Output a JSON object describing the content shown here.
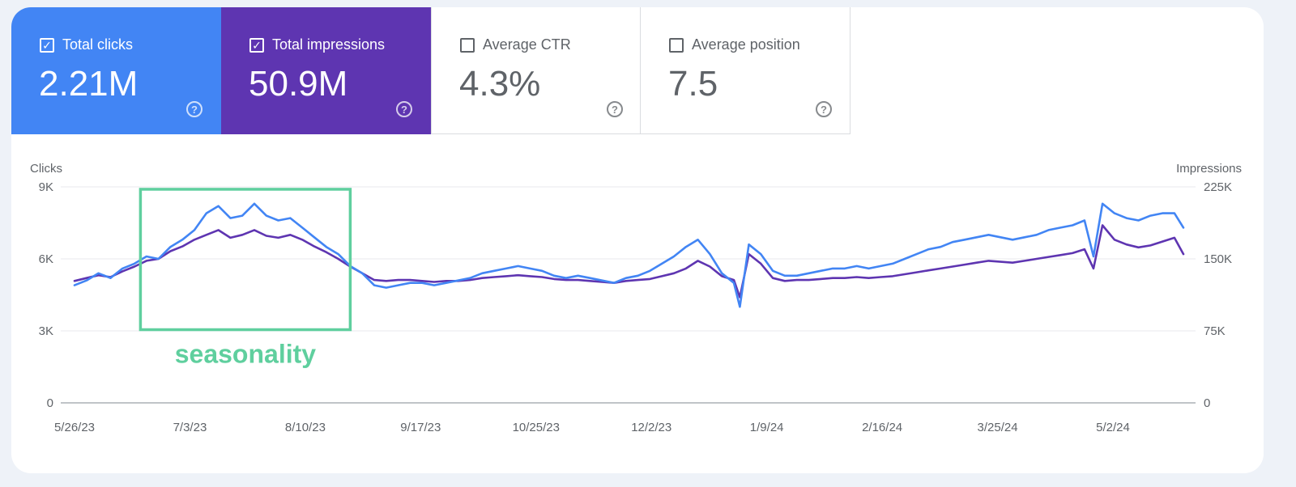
{
  "metrics": [
    {
      "label": "Total clicks",
      "value": "2.21M",
      "checked": true,
      "color": "#4285f4",
      "icon": "help-circle-icon"
    },
    {
      "label": "Total impressions",
      "value": "50.9M",
      "checked": true,
      "color": "#5e35b1",
      "icon": "help-circle-icon"
    },
    {
      "label": "Average CTR",
      "value": "4.3%",
      "checked": false,
      "icon": "help-circle-icon"
    },
    {
      "label": "Average position",
      "value": "7.5",
      "checked": false,
      "icon": "help-circle-icon"
    }
  ],
  "chart_data": {
    "type": "line",
    "y_left_label": "Clicks",
    "y_right_label": "Impressions",
    "y_left_range": [
      0,
      9000
    ],
    "y_right_range": [
      0,
      225000
    ],
    "y_left_ticks": [
      "0",
      "3K",
      "6K",
      "9K"
    ],
    "y_right_ticks": [
      "0",
      "75K",
      "150K",
      "225K"
    ],
    "x_ticks": [
      "5/26/23",
      "7/3/23",
      "8/10/23",
      "9/17/23",
      "10/25/23",
      "12/2/23",
      "1/9/24",
      "2/16/24",
      "3/25/24",
      "5/2/24"
    ],
    "x_range": [
      "2023-05-26",
      "2024-05-30"
    ],
    "grid": true,
    "annotation": {
      "text": "seasonality",
      "x_start": "2023-06-17",
      "x_end": "2023-08-26",
      "y_top": 8900,
      "y_bottom": 3050,
      "color": "#5fcf9e"
    },
    "series": [
      {
        "name": "Clicks",
        "axis": "left",
        "color": "#4285f4",
        "points": [
          [
            "2023-05-26",
            4900
          ],
          [
            "2023-05-30",
            5100
          ],
          [
            "2023-06-03",
            5400
          ],
          [
            "2023-06-07",
            5200
          ],
          [
            "2023-06-11",
            5600
          ],
          [
            "2023-06-15",
            5800
          ],
          [
            "2023-06-19",
            6100
          ],
          [
            "2023-06-23",
            6000
          ],
          [
            "2023-06-27",
            6500
          ],
          [
            "2023-07-01",
            6800
          ],
          [
            "2023-07-05",
            7200
          ],
          [
            "2023-07-09",
            7900
          ],
          [
            "2023-07-13",
            8200
          ],
          [
            "2023-07-17",
            7700
          ],
          [
            "2023-07-21",
            7800
          ],
          [
            "2023-07-25",
            8300
          ],
          [
            "2023-07-29",
            7800
          ],
          [
            "2023-08-02",
            7600
          ],
          [
            "2023-08-06",
            7700
          ],
          [
            "2023-08-10",
            7300
          ],
          [
            "2023-08-14",
            6900
          ],
          [
            "2023-08-18",
            6500
          ],
          [
            "2023-08-22",
            6200
          ],
          [
            "2023-08-26",
            5700
          ],
          [
            "2023-08-30",
            5400
          ],
          [
            "2023-09-03",
            4900
          ],
          [
            "2023-09-07",
            4800
          ],
          [
            "2023-09-11",
            4900
          ],
          [
            "2023-09-15",
            5000
          ],
          [
            "2023-09-19",
            5000
          ],
          [
            "2023-09-23",
            4900
          ],
          [
            "2023-09-27",
            5000
          ],
          [
            "2023-10-01",
            5100
          ],
          [
            "2023-10-05",
            5200
          ],
          [
            "2023-10-09",
            5400
          ],
          [
            "2023-10-13",
            5500
          ],
          [
            "2023-10-17",
            5600
          ],
          [
            "2023-10-21",
            5700
          ],
          [
            "2023-10-25",
            5600
          ],
          [
            "2023-10-29",
            5500
          ],
          [
            "2023-11-02",
            5300
          ],
          [
            "2023-11-06",
            5200
          ],
          [
            "2023-11-10",
            5300
          ],
          [
            "2023-11-14",
            5200
          ],
          [
            "2023-11-18",
            5100
          ],
          [
            "2023-11-22",
            5000
          ],
          [
            "2023-11-26",
            5200
          ],
          [
            "2023-11-30",
            5300
          ],
          [
            "2023-12-04",
            5500
          ],
          [
            "2023-12-08",
            5800
          ],
          [
            "2023-12-12",
            6100
          ],
          [
            "2023-12-16",
            6500
          ],
          [
            "2023-12-20",
            6800
          ],
          [
            "2023-12-24",
            6200
          ],
          [
            "2023-12-28",
            5400
          ],
          [
            "2024-01-01",
            5000
          ],
          [
            "2024-01-03",
            4000
          ],
          [
            "2024-01-06",
            6600
          ],
          [
            "2024-01-10",
            6200
          ],
          [
            "2024-01-14",
            5500
          ],
          [
            "2024-01-18",
            5300
          ],
          [
            "2024-01-22",
            5300
          ],
          [
            "2024-01-26",
            5400
          ],
          [
            "2024-01-30",
            5500
          ],
          [
            "2024-02-03",
            5600
          ],
          [
            "2024-02-07",
            5600
          ],
          [
            "2024-02-11",
            5700
          ],
          [
            "2024-02-15",
            5600
          ],
          [
            "2024-02-19",
            5700
          ],
          [
            "2024-02-23",
            5800
          ],
          [
            "2024-02-27",
            6000
          ],
          [
            "2024-03-02",
            6200
          ],
          [
            "2024-03-06",
            6400
          ],
          [
            "2024-03-10",
            6500
          ],
          [
            "2024-03-14",
            6700
          ],
          [
            "2024-03-18",
            6800
          ],
          [
            "2024-03-22",
            6900
          ],
          [
            "2024-03-26",
            7000
          ],
          [
            "2024-03-30",
            6900
          ],
          [
            "2024-04-03",
            6800
          ],
          [
            "2024-04-07",
            6900
          ],
          [
            "2024-04-11",
            7000
          ],
          [
            "2024-04-15",
            7200
          ],
          [
            "2024-04-19",
            7300
          ],
          [
            "2024-04-23",
            7400
          ],
          [
            "2024-04-27",
            7600
          ],
          [
            "2024-04-30",
            6100
          ],
          [
            "2024-05-03",
            8300
          ],
          [
            "2024-05-07",
            7900
          ],
          [
            "2024-05-11",
            7700
          ],
          [
            "2024-05-15",
            7600
          ],
          [
            "2024-05-19",
            7800
          ],
          [
            "2024-05-23",
            7900
          ],
          [
            "2024-05-27",
            7900
          ],
          [
            "2024-05-30",
            7300
          ]
        ]
      },
      {
        "name": "Impressions",
        "axis": "right",
        "color": "#5e35b1",
        "points": [
          [
            "2023-05-26",
            127000
          ],
          [
            "2023-05-30",
            130000
          ],
          [
            "2023-06-03",
            133000
          ],
          [
            "2023-06-07",
            131000
          ],
          [
            "2023-06-11",
            137000
          ],
          [
            "2023-06-15",
            142000
          ],
          [
            "2023-06-19",
            148000
          ],
          [
            "2023-06-23",
            150000
          ],
          [
            "2023-06-27",
            158000
          ],
          [
            "2023-07-01",
            163000
          ],
          [
            "2023-07-05",
            170000
          ],
          [
            "2023-07-09",
            175000
          ],
          [
            "2023-07-13",
            180000
          ],
          [
            "2023-07-17",
            172000
          ],
          [
            "2023-07-21",
            175000
          ],
          [
            "2023-07-25",
            180000
          ],
          [
            "2023-07-29",
            174000
          ],
          [
            "2023-08-02",
            172000
          ],
          [
            "2023-08-06",
            175000
          ],
          [
            "2023-08-10",
            170000
          ],
          [
            "2023-08-14",
            163000
          ],
          [
            "2023-08-18",
            157000
          ],
          [
            "2023-08-22",
            150000
          ],
          [
            "2023-08-26",
            142000
          ],
          [
            "2023-08-30",
            135000
          ],
          [
            "2023-09-03",
            128000
          ],
          [
            "2023-09-07",
            127000
          ],
          [
            "2023-09-11",
            128000
          ],
          [
            "2023-09-15",
            128000
          ],
          [
            "2023-09-19",
            127000
          ],
          [
            "2023-09-23",
            126000
          ],
          [
            "2023-09-27",
            127000
          ],
          [
            "2023-10-01",
            127000
          ],
          [
            "2023-10-05",
            128000
          ],
          [
            "2023-10-09",
            130000
          ],
          [
            "2023-10-13",
            131000
          ],
          [
            "2023-10-17",
            132000
          ],
          [
            "2023-10-21",
            133000
          ],
          [
            "2023-10-25",
            132000
          ],
          [
            "2023-10-29",
            131000
          ],
          [
            "2023-11-02",
            129000
          ],
          [
            "2023-11-06",
            128000
          ],
          [
            "2023-11-10",
            128000
          ],
          [
            "2023-11-14",
            127000
          ],
          [
            "2023-11-18",
            126000
          ],
          [
            "2023-11-22",
            125000
          ],
          [
            "2023-11-26",
            127000
          ],
          [
            "2023-11-30",
            128000
          ],
          [
            "2023-12-04",
            129000
          ],
          [
            "2023-12-08",
            132000
          ],
          [
            "2023-12-12",
            135000
          ],
          [
            "2023-12-16",
            140000
          ],
          [
            "2023-12-20",
            148000
          ],
          [
            "2023-12-24",
            142000
          ],
          [
            "2023-12-28",
            132000
          ],
          [
            "2024-01-01",
            128000
          ],
          [
            "2024-01-03",
            110000
          ],
          [
            "2024-01-06",
            155000
          ],
          [
            "2024-01-10",
            145000
          ],
          [
            "2024-01-14",
            130000
          ],
          [
            "2024-01-18",
            127000
          ],
          [
            "2024-01-22",
            128000
          ],
          [
            "2024-01-26",
            128000
          ],
          [
            "2024-01-30",
            129000
          ],
          [
            "2024-02-03",
            130000
          ],
          [
            "2024-02-07",
            130000
          ],
          [
            "2024-02-11",
            131000
          ],
          [
            "2024-02-15",
            130000
          ],
          [
            "2024-02-19",
            131000
          ],
          [
            "2024-02-23",
            132000
          ],
          [
            "2024-02-27",
            134000
          ],
          [
            "2024-03-02",
            136000
          ],
          [
            "2024-03-06",
            138000
          ],
          [
            "2024-03-10",
            140000
          ],
          [
            "2024-03-14",
            142000
          ],
          [
            "2024-03-18",
            144000
          ],
          [
            "2024-03-22",
            146000
          ],
          [
            "2024-03-26",
            148000
          ],
          [
            "2024-03-30",
            147000
          ],
          [
            "2024-04-03",
            146000
          ],
          [
            "2024-04-07",
            148000
          ],
          [
            "2024-04-11",
            150000
          ],
          [
            "2024-04-15",
            152000
          ],
          [
            "2024-04-19",
            154000
          ],
          [
            "2024-04-23",
            156000
          ],
          [
            "2024-04-27",
            160000
          ],
          [
            "2024-04-30",
            140000
          ],
          [
            "2024-05-03",
            185000
          ],
          [
            "2024-05-07",
            170000
          ],
          [
            "2024-05-11",
            165000
          ],
          [
            "2024-05-15",
            162000
          ],
          [
            "2024-05-19",
            164000
          ],
          [
            "2024-05-23",
            168000
          ],
          [
            "2024-05-27",
            172000
          ],
          [
            "2024-05-30",
            155000
          ]
        ]
      }
    ]
  }
}
